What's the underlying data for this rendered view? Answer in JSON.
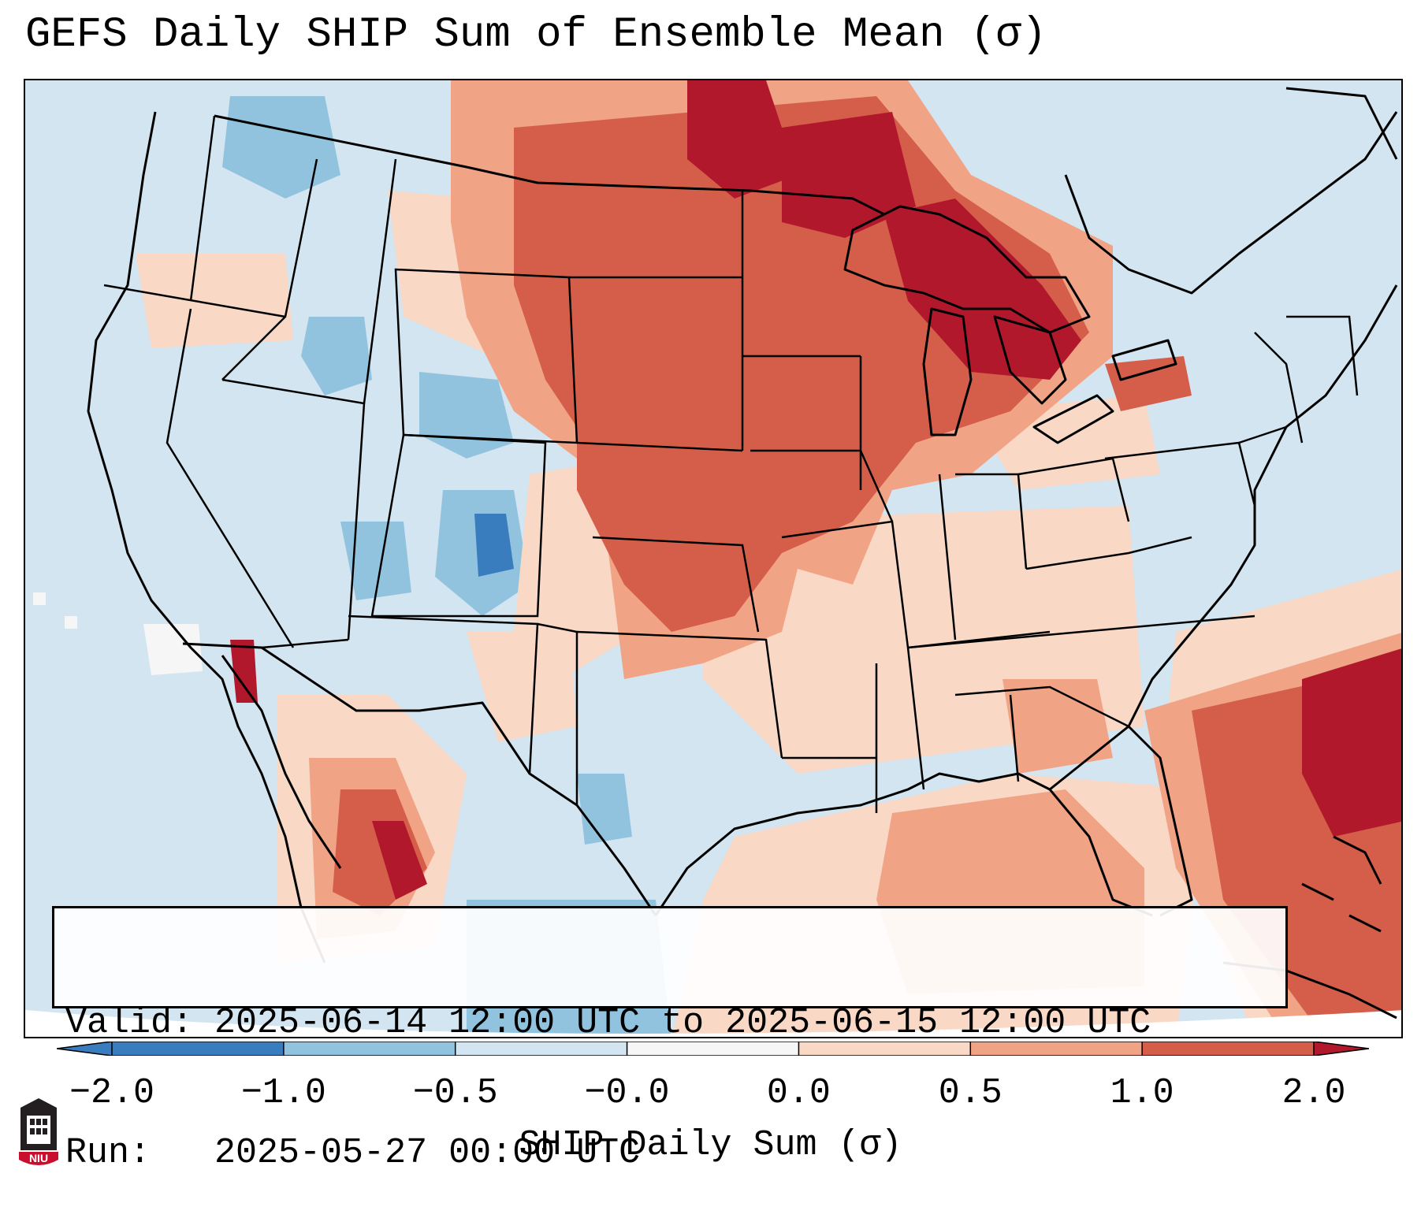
{
  "title": "GEFS Daily SHIP Sum of Ensemble Mean (σ)",
  "valid_line": "Valid: 2025-06-14 12:00 UTC to 2025-06-15 12:00 UTC",
  "run_line": "Run:   2025-05-27 00:00 UTC",
  "colorbar": {
    "label": "SHIP Daily Sum (σ)",
    "ticks": [
      "−2.0",
      "−1.0",
      "−0.5",
      "−0.0",
      "0.0",
      "0.5",
      "1.0",
      "2.0"
    ],
    "colors": [
      "#3a7dbf",
      "#92c3de",
      "#d2e5f0",
      "#f6f6f6",
      "#f9d8c6",
      "#f1a385",
      "#d45e4a",
      "#b2182b"
    ]
  },
  "logo": {
    "text": "NIU"
  },
  "colors": {
    "strong_negative": "#3a7dbf",
    "negative": "#92c3de",
    "weak_negative": "#d2e5f0",
    "weak_positive": "#f9d8c6",
    "positive": "#f1a385",
    "strong_positive": "#d45e4a",
    "extreme_positive": "#b2182b"
  }
}
